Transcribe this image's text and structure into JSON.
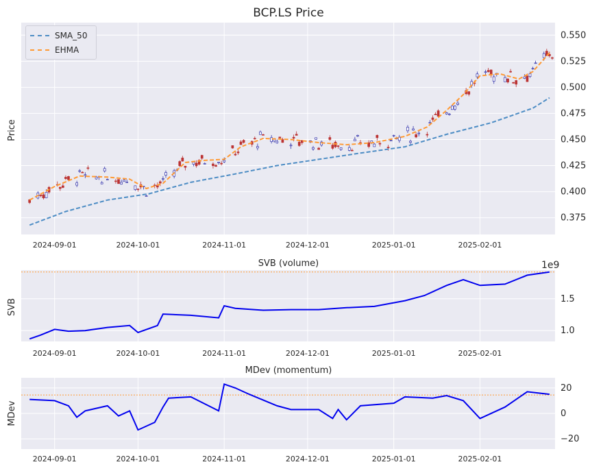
{
  "figure": {
    "title": "BCP.LS Price",
    "background": "#ffffff",
    "axes_background": "#eaeaf2",
    "grid_color": "#ffffff"
  },
  "legend": {
    "items": [
      {
        "label": "SMA_50",
        "color": "#4c8cc4"
      },
      {
        "label": "EHMA",
        "color": "#ff9933"
      }
    ]
  },
  "chart_data": [
    {
      "type": "candlestick",
      "title": "BCP.LS Price",
      "ylabel": "Price",
      "xlabel": "",
      "x_ticks": [
        "2024-09-01",
        "2024-10-01",
        "2024-11-01",
        "2024-12-01",
        "2025-01-01",
        "2025-02-01"
      ],
      "y_ticks": [
        "0.375",
        "0.400",
        "0.425",
        "0.450",
        "0.475",
        "0.500",
        "0.525",
        "0.550"
      ],
      "ylim": [
        0.359,
        0.562
      ],
      "x_range": [
        "2024-08-20",
        "2025-02-28"
      ],
      "grid": true,
      "legend_position": "top-left",
      "up_color": "#3333aa",
      "down_color": "#bb3333",
      "series": [
        {
          "name": "SMA_50",
          "style": "dashed",
          "color": "#4c8cc4",
          "x": [
            "2024-08-23",
            "2024-09-05",
            "2024-09-20",
            "2024-10-05",
            "2024-10-20",
            "2024-11-05",
            "2024-11-20",
            "2024-12-05",
            "2024-12-20",
            "2025-01-05",
            "2025-01-20",
            "2025-02-05",
            "2025-02-20",
            "2025-02-26"
          ],
          "values": [
            0.368,
            0.381,
            0.392,
            0.398,
            0.409,
            0.417,
            0.425,
            0.431,
            0.437,
            0.443,
            0.455,
            0.466,
            0.48,
            0.49
          ]
        },
        {
          "name": "EHMA",
          "style": "dashed",
          "color": "#ff9933",
          "x": [
            "2024-08-23",
            "2024-09-01",
            "2024-09-10",
            "2024-09-20",
            "2024-09-28",
            "2024-10-04",
            "2024-10-10",
            "2024-10-18",
            "2024-10-25",
            "2024-11-01",
            "2024-11-07",
            "2024-11-15",
            "2024-11-25",
            "2024-12-05",
            "2024-12-15",
            "2024-12-25",
            "2025-01-05",
            "2025-01-13",
            "2025-01-20",
            "2025-01-26",
            "2025-02-01",
            "2025-02-08",
            "2025-02-15",
            "2025-02-20",
            "2025-02-26"
          ],
          "values": [
            0.392,
            0.405,
            0.415,
            0.414,
            0.412,
            0.403,
            0.408,
            0.428,
            0.43,
            0.431,
            0.443,
            0.451,
            0.45,
            0.447,
            0.445,
            0.447,
            0.453,
            0.462,
            0.478,
            0.493,
            0.511,
            0.513,
            0.508,
            0.515,
            0.533
          ]
        }
      ]
    },
    {
      "type": "line",
      "title": "SVB (volume)",
      "ylabel": "SVB",
      "xlabel": "",
      "x_ticks": [
        "2024-09-01",
        "2024-10-01",
        "2024-11-01",
        "2024-12-01",
        "2025-01-01",
        "2025-02-01"
      ],
      "y_ticks": [
        "1.0",
        "1.5"
      ],
      "offset_label": "1e9",
      "ylim": [
        0.83,
        1.95
      ],
      "reference_line": 1.92,
      "grid": true,
      "series": [
        {
          "name": "",
          "color": "#0000ee",
          "x": [
            "2024-08-23",
            "2024-08-27",
            "2024-09-01",
            "2024-09-06",
            "2024-09-12",
            "2024-09-20",
            "2024-09-28",
            "2024-10-01",
            "2024-10-08",
            "2024-10-10",
            "2024-10-20",
            "2024-10-30",
            "2024-11-01",
            "2024-11-05",
            "2024-11-15",
            "2024-11-25",
            "2024-12-05",
            "2024-12-15",
            "2024-12-25",
            "2025-01-05",
            "2025-01-12",
            "2025-01-20",
            "2025-01-26",
            "2025-02-01",
            "2025-02-10",
            "2025-02-18",
            "2025-02-26"
          ],
          "values": [
            0.87,
            0.93,
            1.02,
            0.99,
            1.0,
            1.05,
            1.08,
            0.97,
            1.08,
            1.26,
            1.24,
            1.2,
            1.39,
            1.35,
            1.32,
            1.33,
            1.33,
            1.36,
            1.38,
            1.47,
            1.55,
            1.71,
            1.8,
            1.71,
            1.73,
            1.87,
            1.92
          ]
        }
      ]
    },
    {
      "type": "line",
      "title": "MDev (momentum)",
      "ylabel": "MDev",
      "xlabel": "",
      "x_ticks": [
        "2024-09-01",
        "2024-10-01",
        "2024-11-01",
        "2024-12-01",
        "2025-01-01",
        "2025-02-01"
      ],
      "y_ticks": [
        "−20",
        "0",
        "20"
      ],
      "ylim": [
        -28,
        28
      ],
      "reference_line": 14.5,
      "grid": true,
      "series": [
        {
          "name": "",
          "color": "#0000ee",
          "x": [
            "2024-08-23",
            "2024-09-01",
            "2024-09-06",
            "2024-09-09",
            "2024-09-12",
            "2024-09-20",
            "2024-09-24",
            "2024-09-28",
            "2024-10-01",
            "2024-10-07",
            "2024-10-10",
            "2024-10-12",
            "2024-10-20",
            "2024-10-30",
            "2024-11-01",
            "2024-11-05",
            "2024-11-10",
            "2024-11-20",
            "2024-11-25",
            "2024-12-05",
            "2024-12-10",
            "2024-12-12",
            "2024-12-15",
            "2024-12-20",
            "2025-01-01",
            "2025-01-05",
            "2025-01-15",
            "2025-01-20",
            "2025-01-26",
            "2025-02-01",
            "2025-02-10",
            "2025-02-18",
            "2025-02-26"
          ],
          "values": [
            11,
            10,
            6,
            -3,
            2,
            6,
            -2,
            2,
            -13,
            -7,
            5,
            12,
            13,
            2,
            23,
            20,
            15,
            6,
            3,
            3,
            -4,
            3,
            -5,
            6,
            8,
            13,
            12,
            14,
            10,
            -4,
            5,
            17,
            15
          ]
        }
      ]
    }
  ]
}
